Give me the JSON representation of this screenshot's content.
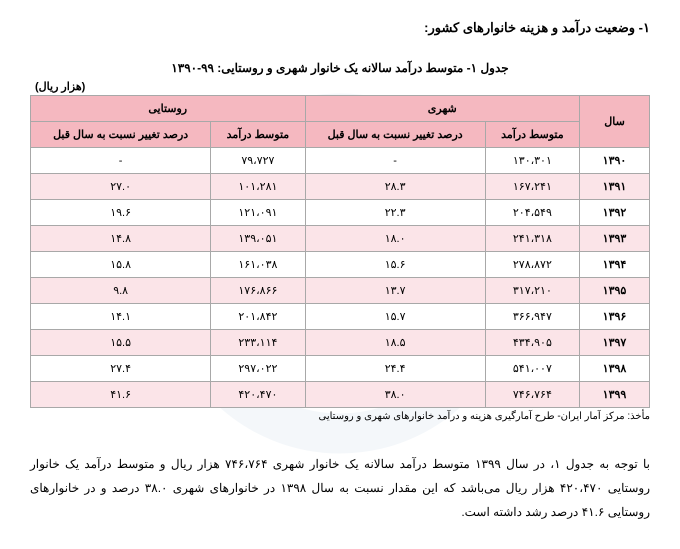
{
  "section_title": "۱- وضعیت درآمد و هزینه خانوارهای کشور:",
  "table_title": "جدول ۱- متوسط درآمد سالانه یک خانوار شهری و روستایی: ۹۹-۱۳۹۰",
  "unit": "(هزار ریال)",
  "headers": {
    "year": "سال",
    "urban": "شهری",
    "rural": "روستایی",
    "avg_income": "متوسط درآمد",
    "pct_change": "درصد تغییر نسبت به سال قبل"
  },
  "rows": [
    {
      "year": "۱۳۹۰",
      "urban_income": "۱۳۰،۳۰۱",
      "urban_pct": "-",
      "rural_income": "۷۹،۷۲۷",
      "rural_pct": "-"
    },
    {
      "year": "۱۳۹۱",
      "urban_income": "۱۶۷،۲۴۱",
      "urban_pct": "۲۸.۳",
      "rural_income": "۱۰۱،۲۸۱",
      "rural_pct": "۲۷.۰"
    },
    {
      "year": "۱۳۹۲",
      "urban_income": "۲۰۴،۵۴۹",
      "urban_pct": "۲۲.۳",
      "rural_income": "۱۲۱،۰۹۱",
      "rural_pct": "۱۹.۶"
    },
    {
      "year": "۱۳۹۳",
      "urban_income": "۲۴۱،۳۱۸",
      "urban_pct": "۱۸.۰",
      "rural_income": "۱۳۹،۰۵۱",
      "rural_pct": "۱۴.۸"
    },
    {
      "year": "۱۳۹۴",
      "urban_income": "۲۷۸،۸۷۲",
      "urban_pct": "۱۵.۶",
      "rural_income": "۱۶۱،۰۳۸",
      "rural_pct": "۱۵.۸"
    },
    {
      "year": "۱۳۹۵",
      "urban_income": "۳۱۷،۲۱۰",
      "urban_pct": "۱۳.۷",
      "rural_income": "۱۷۶،۸۶۶",
      "rural_pct": "۹.۸"
    },
    {
      "year": "۱۳۹۶",
      "urban_income": "۳۶۶،۹۴۷",
      "urban_pct": "۱۵.۷",
      "rural_income": "۲۰۱،۸۴۲",
      "rural_pct": "۱۴.۱"
    },
    {
      "year": "۱۳۹۷",
      "urban_income": "۴۳۴،۹۰۵",
      "urban_pct": "۱۸.۵",
      "rural_income": "۲۳۳،۱۱۴",
      "rural_pct": "۱۵.۵"
    },
    {
      "year": "۱۳۹۸",
      "urban_income": "۵۴۱،۰۰۷",
      "urban_pct": "۲۴.۴",
      "rural_income": "۲۹۷،۰۲۲",
      "rural_pct": "۲۷.۴"
    },
    {
      "year": "۱۳۹۹",
      "urban_income": "۷۴۶،۷۶۴",
      "urban_pct": "۳۸.۰",
      "rural_income": "۴۲۰،۴۷۰",
      "rural_pct": "۴۱.۶"
    }
  ],
  "source": "مأخذ: مرکز آمار ایران- طرح آمارگیری هزینه و درآمد خانوارهای شهری و روستایی",
  "paragraph": "با توجه به جدول ۱، در سال ۱۳۹۹ متوسط درآمد سالانه یک خانوار شهری ۷۴۶،۷۶۴ هزار ریال و متوسط درآمد یک خانوار روستایی ۴۲۰،۴۷۰ هزار ریال می‌باشد که این مقدار نسبت به سال ۱۳۹۸ در خانوارهای شهری ۳۸.۰ درصد و در خانوارهای روستایی ۴۱.۶ درصد رشد داشته است.",
  "styling": {
    "header_bg": "#f5b8c0",
    "row_even_bg": "#fbe4e8",
    "row_odd_bg": "#ffffff",
    "border_color": "#a8a8a8",
    "text_color": "#000000",
    "page_bg": "#ffffff",
    "fonts": {
      "base": "Tahoma",
      "title_size": 13,
      "table_title_size": 12,
      "cell_size": 11,
      "source_size": 10,
      "para_size": 12
    }
  }
}
